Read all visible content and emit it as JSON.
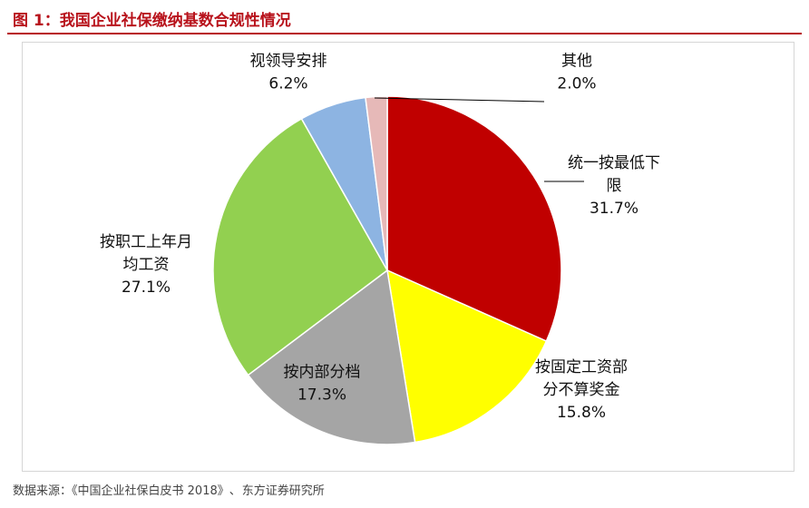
{
  "figure": {
    "title": "图 1：我国企业社保缴纳基数合规性情况",
    "source_prefix": "数据来源：",
    "source_book": "《中国企业社保白皮书 2018》",
    "source_org": "东方证券研究所"
  },
  "chart_data": {
    "type": "pie",
    "title": "",
    "start_angle_deg": 0,
    "direction": "clockwise",
    "slices": [
      {
        "key": "unified_min",
        "lines": [
          "统一按最低下",
          "限"
        ],
        "pct_label": "31.7%",
        "value": 31.7,
        "color": "#c00000"
      },
      {
        "key": "fixed_wage",
        "lines": [
          "按固定工资部",
          "分不算奖金"
        ],
        "pct_label": "15.8%",
        "value": 15.8,
        "color": "#ffff00"
      },
      {
        "key": "internal_grade",
        "lines": [
          "按内部分档"
        ],
        "pct_label": "17.3%",
        "value": 17.3,
        "color": "#a5a5a5"
      },
      {
        "key": "last_year_avg",
        "lines": [
          "按职工上年月",
          "均工资"
        ],
        "pct_label": "27.1%",
        "value": 27.1,
        "color": "#92d050"
      },
      {
        "key": "leadership",
        "lines": [
          "视领导安排"
        ],
        "pct_label": "6.2%",
        "value": 6.2,
        "color": "#8db4e2"
      },
      {
        "key": "other",
        "lines": [
          "其他"
        ],
        "pct_label": "2.0%",
        "value": 2.0,
        "color": "#e6b9b8"
      }
    ]
  }
}
